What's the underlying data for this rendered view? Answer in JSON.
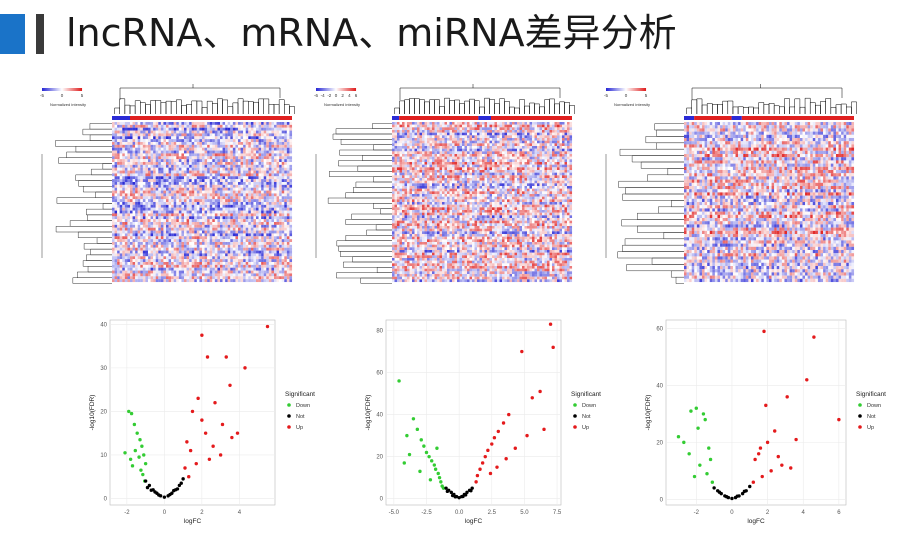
{
  "title": "lncRNA、mRNA、miRNA差异分析",
  "colors": {
    "accent": "#1a73c8",
    "accent_dark": "#3a3a3a",
    "heat_low": "#2b2bd6",
    "heat_high": "#e02020",
    "up": "#e41a1c",
    "down": "#33cc33",
    "not": "#000000"
  },
  "heatmaps": [
    {
      "legend_title": "Normalized intensity",
      "legend_ticks": [
        "-5",
        "0",
        "5"
      ]
    },
    {
      "legend_title": "Normalized intensity",
      "legend_ticks": [
        "-6",
        "-4",
        "-2",
        "0",
        "2",
        "4",
        "6"
      ]
    },
    {
      "legend_title": "Normalized intensity",
      "legend_ticks": [
        "-5",
        "0",
        "5"
      ]
    }
  ],
  "chart_data": [
    {
      "type": "scatter",
      "chart": "volcano",
      "xlabel": "logFC",
      "ylabel": "-log10(FDR)",
      "xlim": [
        -2.9,
        5.9
      ],
      "ylim": [
        -1.5,
        41
      ],
      "xticks": [
        "-2",
        "0",
        "2",
        "4"
      ],
      "yticks": [
        "0",
        "10",
        "20",
        "30",
        "40"
      ],
      "legend": {
        "title": "Significant",
        "items": [
          "Down",
          "Not",
          "Up"
        ]
      },
      "series": [
        {
          "name": "Down",
          "x": [
            -1.9,
            -1.75,
            -2.1,
            -1.6,
            -1.45,
            -1.3,
            -1.2,
            -1.1,
            -1.0,
            -1.35,
            -1.55,
            -1.8,
            -1.7,
            -1.25,
            -1.15,
            -1.05
          ],
          "y": [
            20,
            19.5,
            10.5,
            17,
            15,
            13.5,
            12,
            10,
            8,
            9.5,
            11,
            9,
            7.5,
            6.5,
            5.5,
            4
          ]
        },
        {
          "name": "Not",
          "x": [
            -1.0,
            -0.8,
            -0.6,
            -0.4,
            -0.2,
            0.0,
            0.2,
            0.4,
            0.6,
            0.8,
            1.0,
            -0.9,
            0.9,
            -0.5,
            0.5,
            -0.3,
            0.3,
            -0.7,
            0.7
          ],
          "y": [
            4,
            3,
            2,
            1.2,
            0.6,
            0.3,
            0.6,
            1.2,
            2,
            3,
            4.5,
            2.5,
            3.5,
            1.5,
            1.8,
            0.8,
            0.9,
            1.9,
            2.2
          ]
        },
        {
          "name": "Up",
          "x": [
            5.5,
            2.0,
            2.3,
            3.3,
            4.3,
            3.5,
            1.8,
            1.5,
            2.7,
            3.1,
            3.9,
            1.2,
            1.4,
            2.2,
            2.6,
            3.0,
            1.1,
            1.7,
            2.4,
            3.6,
            1.3,
            2.0
          ],
          "y": [
            39.5,
            37.5,
            32.5,
            32.5,
            30,
            26,
            23,
            20,
            22,
            17,
            15,
            13,
            11,
            15,
            12,
            10,
            7,
            8,
            9,
            14,
            5,
            18
          ]
        }
      ]
    },
    {
      "type": "scatter",
      "chart": "volcano",
      "xlabel": "logFC",
      "ylabel": "-log10(FDR)",
      "xlim": [
        -5.6,
        7.8
      ],
      "ylim": [
        -3,
        85
      ],
      "xticks": [
        "-5.0",
        "-2.5",
        "0.0",
        "2.5",
        "5.0",
        "7.5"
      ],
      "yticks": [
        "0",
        "20",
        "40",
        "60",
        "80"
      ],
      "legend": {
        "title": "Significant",
        "items": [
          "Down",
          "Not",
          "Up"
        ]
      },
      "series": [
        {
          "name": "Down",
          "x": [
            -4.6,
            -3.5,
            -4.0,
            -3.2,
            -2.9,
            -2.7,
            -2.5,
            -2.3,
            -2.1,
            -1.9,
            -1.8,
            -1.6,
            -1.5,
            -1.4,
            -1.3,
            -1.2,
            -3.8,
            -4.2,
            -3.0,
            -2.2,
            -1.7
          ],
          "y": [
            56,
            38,
            30,
            33,
            28,
            25,
            22,
            20,
            18,
            16,
            14,
            12,
            10,
            8,
            6,
            5,
            21,
            17,
            13,
            9,
            24
          ]
        },
        {
          "name": "Not",
          "x": [
            -1.0,
            -0.8,
            -0.6,
            -0.4,
            -0.2,
            0.0,
            0.2,
            0.4,
            0.6,
            0.8,
            1.0,
            -0.9,
            0.9,
            -0.5,
            0.5,
            -0.3,
            0.3
          ],
          "y": [
            5,
            4,
            3,
            2,
            1,
            0.5,
            1,
            2,
            3,
            4,
            5,
            3.5,
            3.8,
            1.5,
            1.8,
            0.9,
            1.1
          ]
        },
        {
          "name": "Up",
          "x": [
            7.0,
            7.2,
            6.2,
            5.6,
            4.8,
            6.5,
            3.8,
            3.4,
            3.0,
            2.7,
            2.5,
            2.2,
            2.0,
            1.8,
            1.6,
            1.4,
            1.3,
            4.3,
            3.6,
            2.9,
            2.4,
            5.2
          ],
          "y": [
            83,
            72,
            51,
            48,
            70,
            33,
            40,
            36,
            32,
            29,
            26,
            23,
            20,
            17,
            14,
            11,
            8,
            24,
            19,
            15,
            12,
            30
          ]
        }
      ]
    },
    {
      "type": "scatter",
      "chart": "volcano",
      "xlabel": "logFC",
      "ylabel": "-log10(FDR)",
      "xlim": [
        -3.7,
        6.4
      ],
      "ylim": [
        -2,
        63
      ],
      "xticks": [
        "-2",
        "0",
        "2",
        "4",
        "6"
      ],
      "yticks": [
        "0",
        "20",
        "40",
        "60"
      ],
      "legend": {
        "title": "Significant",
        "items": [
          "Down",
          "Not",
          "Up"
        ]
      },
      "series": [
        {
          "name": "Down",
          "x": [
            -2.3,
            -2.0,
            -1.6,
            -3.0,
            -2.7,
            -1.9,
            -1.5,
            -1.3,
            -1.2,
            -2.4,
            -1.8,
            -1.4,
            -2.1,
            -1.1
          ],
          "y": [
            31,
            32,
            30,
            22,
            20,
            25,
            28,
            18,
            14,
            16,
            12,
            9,
            8,
            6
          ]
        },
        {
          "name": "Not",
          "x": [
            -1.0,
            -0.8,
            -0.6,
            -0.4,
            -0.2,
            0.0,
            0.2,
            0.4,
            0.6,
            0.8,
            1.0,
            -0.7,
            0.7,
            -0.3,
            0.3
          ],
          "y": [
            4,
            3,
            2,
            1.2,
            0.6,
            0.3,
            0.6,
            1.2,
            2,
            3,
            4.5,
            2.5,
            2.8,
            0.9,
            1.1
          ]
        },
        {
          "name": "Up",
          "x": [
            1.8,
            4.6,
            4.2,
            3.1,
            6.0,
            1.9,
            3.6,
            2.4,
            2.0,
            1.6,
            1.5,
            1.3,
            2.8,
            2.2,
            1.7,
            2.6,
            1.2,
            3.3
          ],
          "y": [
            59,
            57,
            42,
            36,
            28,
            33,
            21,
            24,
            20,
            18,
            16,
            14,
            12,
            10,
            8,
            15,
            6,
            11
          ]
        }
      ]
    }
  ]
}
